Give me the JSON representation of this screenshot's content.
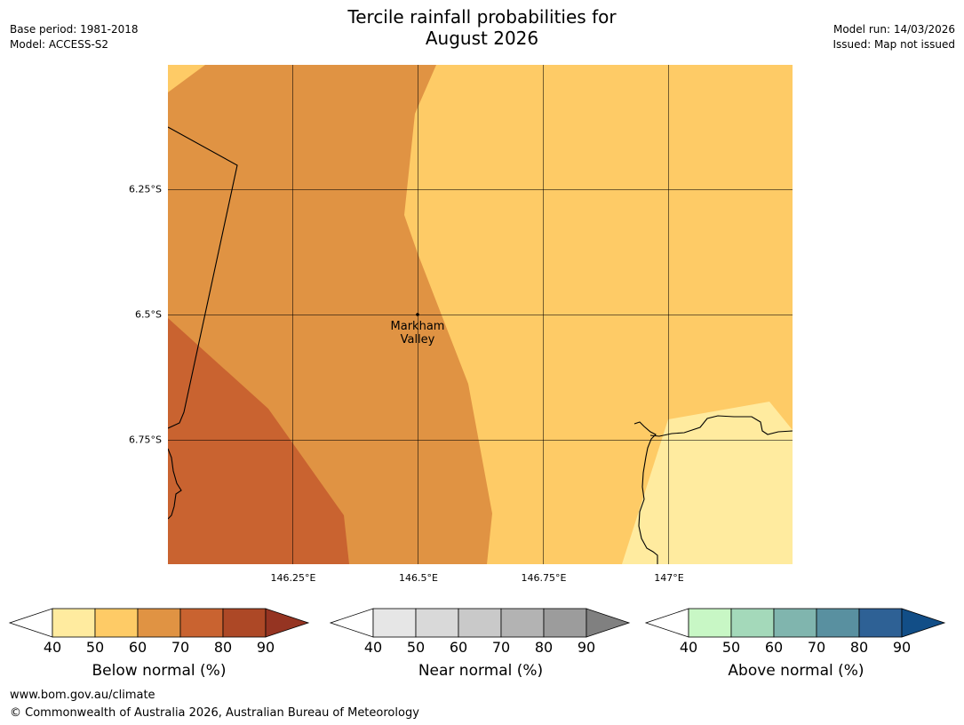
{
  "title": {
    "line1": "Tercile rainfall probabilities for",
    "line2": "August 2026"
  },
  "meta": {
    "base_period": "Base period: 1981-2018",
    "model": "Model: ACCESS-S2",
    "model_run": "Model run: 14/03/2026",
    "issued": "Issued: Map not issued"
  },
  "map": {
    "lat_labels": [
      "6.25°S",
      "6.5°S",
      "6.75°S"
    ],
    "lon_labels": [
      "146.25°E",
      "146.5°E",
      "146.75°E",
      "147°E"
    ],
    "place": {
      "name_line1": "Markham",
      "name_line2": "Valley"
    },
    "fill_colors": {
      "lt50": "#ffeb9f",
      "b50_60": "#fecb66",
      "b60_70": "#e09343",
      "b70_80": "#c96330"
    }
  },
  "colorbars": [
    {
      "title": "Below normal (%)",
      "ticks": [
        "40",
        "50",
        "60",
        "70",
        "80",
        "90"
      ],
      "colors": [
        "#ffffff",
        "#ffeb9f",
        "#fecb66",
        "#e09343",
        "#c96330",
        "#ad4826",
        "#953422"
      ]
    },
    {
      "title": "Near normal (%)",
      "ticks": [
        "40",
        "50",
        "60",
        "70",
        "80",
        "90"
      ],
      "colors": [
        "#ffffff",
        "#e6e6e6",
        "#d9d9d9",
        "#c9c9c9",
        "#b3b3b3",
        "#9c9c9c",
        "#808080"
      ]
    },
    {
      "title": "Above normal (%)",
      "ticks": [
        "40",
        "50",
        "60",
        "70",
        "80",
        "90"
      ],
      "colors": [
        "#ffffff",
        "#c8f7c5",
        "#a4d9ba",
        "#80b5ae",
        "#5990a0",
        "#2e6195",
        "#124e87"
      ]
    }
  ],
  "footer": {
    "url": "www.bom.gov.au/climate",
    "copyright": "© Commonwealth of Australia 2026, Australian Bureau of Meteorology"
  }
}
